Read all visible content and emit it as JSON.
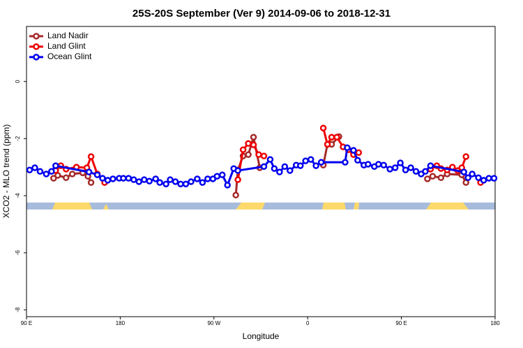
{
  "chart_data": {
    "type": "line",
    "title": "25S-20S September (Ver 9)   2014-09-06 to 2018-12-31",
    "x_label": "Longitude",
    "y_label": "XCO2 - MLO trend (ppm)",
    "xlim": [
      90,
      540
    ],
    "xticks": [
      {
        "value": 90,
        "label": "90 E"
      },
      {
        "value": 180,
        "label": "180"
      },
      {
        "value": 270,
        "label": "90 W"
      },
      {
        "value": 360,
        "label": "0"
      },
      {
        "value": 450,
        "label": "90 E"
      },
      {
        "value": 540,
        "label": "180"
      }
    ],
    "ylim": [
      -8.24,
      1.93
    ],
    "yticks": [
      -8,
      -6,
      -4,
      -2,
      0
    ],
    "legend": "top-left",
    "series": [
      {
        "name": "Land Nadir",
        "color": "#a52a2a",
        "x": [
          116,
          120,
          128,
          134,
          144,
          149,
          152,
          220,
          291,
          293,
          298,
          303,
          308,
          314,
          345,
          375,
          379,
          383,
          390,
          430,
          475,
          480,
          488,
          494,
          508,
          512
        ],
        "values": [
          -3.39,
          -3.29,
          -3.37,
          -3.24,
          -3.2,
          -3.32,
          -3.54,
          null,
          -3.98,
          -3.1,
          -2.61,
          -2.56,
          -1.95,
          -3.02,
          null,
          -2.93,
          -2.2,
          -2.2,
          -1.93,
          null,
          -3.41,
          -3.32,
          -3.37,
          -3.24,
          -3.27,
          -3.54
        ]
      },
      {
        "name": "Land Glint",
        "color": "#ee0000",
        "x": [
          118,
          123,
          128,
          138,
          148,
          152,
          158,
          165,
          230,
          293,
          298,
          303,
          308,
          313,
          318,
          345,
          375,
          379,
          383,
          388,
          394,
          399,
          404,
          409,
          440,
          478,
          484,
          488,
          494,
          499,
          504,
          508,
          512,
          520,
          526
        ],
        "values": [
          -3.12,
          -2.95,
          -3.07,
          -3.0,
          -3.02,
          -2.63,
          -3.24,
          -3.54,
          null,
          -3.44,
          -2.39,
          -2.17,
          -2.22,
          -2.56,
          -2.61,
          null,
          -1.63,
          -2.2,
          -1.95,
          -1.95,
          -2.29,
          -2.39,
          -2.56,
          -2.49,
          null,
          -3.07,
          -2.95,
          -3.05,
          -3.1,
          -3.0,
          -3.12,
          -3.02,
          -2.63,
          null,
          -3.54
        ]
      },
      {
        "name": "Ocean Glint",
        "color": "#0000ee",
        "x": [
          93,
          98,
          103,
          109,
          114,
          118,
          150,
          158,
          163,
          168,
          173,
          179,
          183,
          188,
          193,
          198,
          203,
          208,
          214,
          218,
          224,
          228,
          233,
          238,
          243,
          248,
          254,
          259,
          264,
          269,
          273,
          278,
          283,
          289,
          293,
          318,
          324,
          328,
          333,
          338,
          343,
          349,
          353,
          358,
          363,
          368,
          373,
          396,
          398,
          404,
          408,
          414,
          418,
          424,
          428,
          433,
          439,
          444,
          449,
          454,
          459,
          464,
          469,
          473,
          478,
          510,
          514,
          518,
          524,
          529,
          534,
          539
        ],
        "values": [
          -3.1,
          -3.02,
          -3.15,
          -3.24,
          -3.15,
          -2.95,
          -3.17,
          -3.27,
          -3.39,
          -3.46,
          -3.41,
          -3.39,
          -3.39,
          -3.39,
          -3.44,
          -3.51,
          -3.44,
          -3.49,
          -3.41,
          -3.54,
          -3.59,
          -3.44,
          -3.51,
          -3.59,
          -3.59,
          -3.51,
          -3.41,
          -3.54,
          -3.41,
          -3.41,
          -3.32,
          -3.27,
          -3.63,
          -3.05,
          -3.12,
          -2.98,
          -2.73,
          -3.05,
          -3.17,
          -2.98,
          -3.12,
          -2.93,
          -2.95,
          -2.78,
          -2.73,
          -2.95,
          -2.83,
          -2.83,
          -2.32,
          -2.41,
          -2.76,
          -2.93,
          -2.9,
          -2.98,
          -2.9,
          -2.93,
          -3.07,
          -3.02,
          -2.85,
          -3.1,
          -3.02,
          -3.15,
          -3.24,
          -3.15,
          -2.95,
          -3.17,
          -3.37,
          -3.24,
          -3.37,
          -3.46,
          -3.39,
          -3.39
        ]
      }
    ]
  }
}
